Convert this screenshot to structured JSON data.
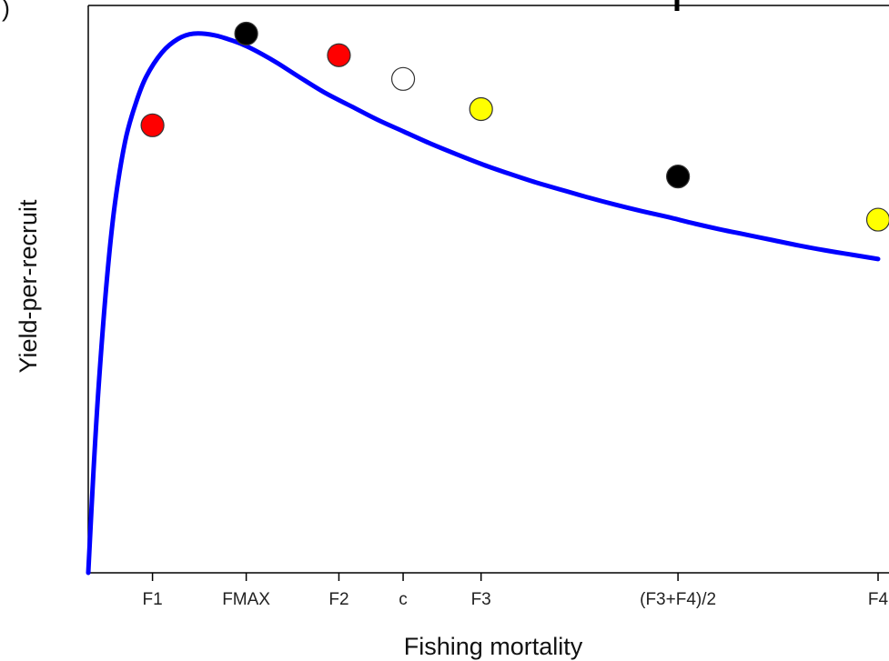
{
  "panel_label_fragment": ")",
  "chart_data": {
    "type": "line",
    "title": "",
    "xlabel": "Fishing mortality",
    "ylabel": "Yield-per-recruit",
    "grid": false,
    "legend": "none",
    "line_color": "#0000ff",
    "x_ticks": [
      "F1",
      "FMAX",
      "F2",
      "c",
      "F3",
      "(F3+F4)/2",
      "F4"
    ],
    "curve": {
      "x": [
        0,
        0.01,
        0.02,
        0.035,
        0.05,
        0.07,
        0.09,
        0.11,
        0.14,
        0.17,
        0.2,
        0.24,
        0.28,
        0.3,
        0.33,
        0.36,
        0.4,
        0.45,
        0.5,
        0.55,
        0.6,
        0.65,
        0.7,
        0.75,
        0.8,
        0.85,
        0.9,
        0.95,
        1.0,
        1.05,
        1.1,
        1.15,
        1.2,
        1.25,
        1.3,
        1.35,
        1.4,
        1.45,
        1.5
      ],
      "y": [
        0,
        0.19,
        0.35,
        0.54,
        0.68,
        0.8,
        0.87,
        0.92,
        0.965,
        0.99,
        1.0,
        0.997,
        0.985,
        0.977,
        0.962,
        0.945,
        0.92,
        0.89,
        0.865,
        0.84,
        0.818,
        0.796,
        0.776,
        0.757,
        0.74,
        0.724,
        0.71,
        0.696,
        0.683,
        0.671,
        0.66,
        0.648,
        0.637,
        0.627,
        0.617,
        0.607,
        0.598,
        0.59,
        0.582
      ]
    },
    "points": [
      {
        "label": "F1",
        "x": 0.122,
        "y": 0.83,
        "color": "#ff0000"
      },
      {
        "label": "FMAX",
        "x": 0.3,
        "y": 1.0,
        "color": "#000000"
      },
      {
        "label": "F2",
        "x": 0.476,
        "y": 0.96,
        "color": "#ff0000"
      },
      {
        "label": "c",
        "x": 0.598,
        "y": 0.916,
        "color": "#ffffff"
      },
      {
        "label": "F3",
        "x": 0.746,
        "y": 0.86,
        "color": "#ffff00"
      },
      {
        "label": "(F3+F4)/2",
        "x": 1.12,
        "y": 0.735,
        "color": "#000000"
      },
      {
        "label": "F4",
        "x": 1.5,
        "y": 0.655,
        "color": "#ffff00"
      }
    ],
    "xlim": [
      0,
      1.5
    ],
    "ylim": [
      0,
      1.0
    ]
  }
}
